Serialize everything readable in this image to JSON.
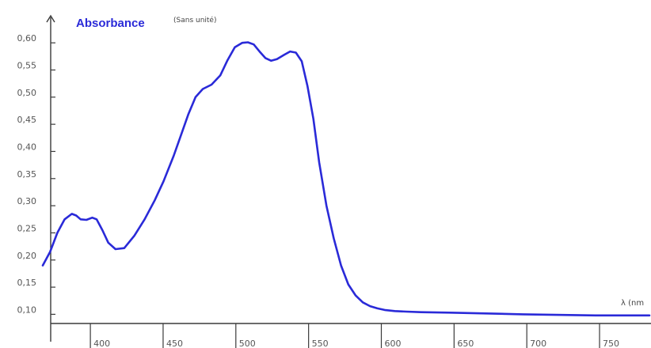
{
  "chart_data": {
    "type": "line",
    "title": "Absorbance",
    "title_unit": "(Sans unité)",
    "xlabel": "λ (nm",
    "ylabel": "Absorbance (Sans unité)",
    "xlim": [
      370,
      787
    ],
    "ylim": [
      0.07,
      0.625
    ],
    "grid": false,
    "x_ticks": [
      400,
      450,
      500,
      550,
      600,
      650,
      700,
      750
    ],
    "x_tick_labels": [
      "400",
      "450",
      "500",
      "550",
      "600",
      "650",
      "700",
      "750"
    ],
    "y_ticks": [
      0.1,
      0.15,
      0.2,
      0.25,
      0.3,
      0.35,
      0.4,
      0.45,
      0.5,
      0.55,
      0.6
    ],
    "y_tick_labels": [
      "0,10",
      "0,15",
      "0,20",
      "0,25",
      "0,30",
      "0,35",
      "0,40",
      "0,45",
      "0,50",
      "0,55",
      "0,60"
    ],
    "series": [
      {
        "color": "#2a2ad8",
        "x": [
          370,
          375,
          380,
          385,
          390,
          393,
          396,
          400,
          404,
          407,
          411,
          415,
          420,
          426,
          433,
          440,
          447,
          453,
          460,
          465,
          470,
          475,
          480,
          486,
          492,
          497,
          502,
          507,
          511,
          515,
          519,
          523,
          527,
          531,
          536,
          540,
          544,
          548,
          552,
          556,
          560,
          565,
          570,
          575,
          580,
          585,
          590,
          595,
          600,
          605,
          612,
          620,
          630,
          650,
          700,
          750,
          787
        ],
        "y": [
          0.19,
          0.215,
          0.25,
          0.275,
          0.285,
          0.282,
          0.275,
          0.274,
          0.278,
          0.275,
          0.255,
          0.232,
          0.22,
          0.222,
          0.245,
          0.275,
          0.31,
          0.345,
          0.392,
          0.43,
          0.468,
          0.5,
          0.515,
          0.523,
          0.54,
          0.568,
          0.592,
          0.6,
          0.601,
          0.597,
          0.584,
          0.572,
          0.567,
          0.57,
          0.578,
          0.584,
          0.582,
          0.566,
          0.52,
          0.46,
          0.38,
          0.3,
          0.24,
          0.19,
          0.155,
          0.135,
          0.122,
          0.115,
          0.111,
          0.108,
          0.106,
          0.105,
          0.104,
          0.103,
          0.1,
          0.098,
          0.098
        ]
      }
    ]
  },
  "colors": {
    "curve": "#2a2ad8",
    "title": "#2a2ad8",
    "axis": "#3a3a3a"
  }
}
